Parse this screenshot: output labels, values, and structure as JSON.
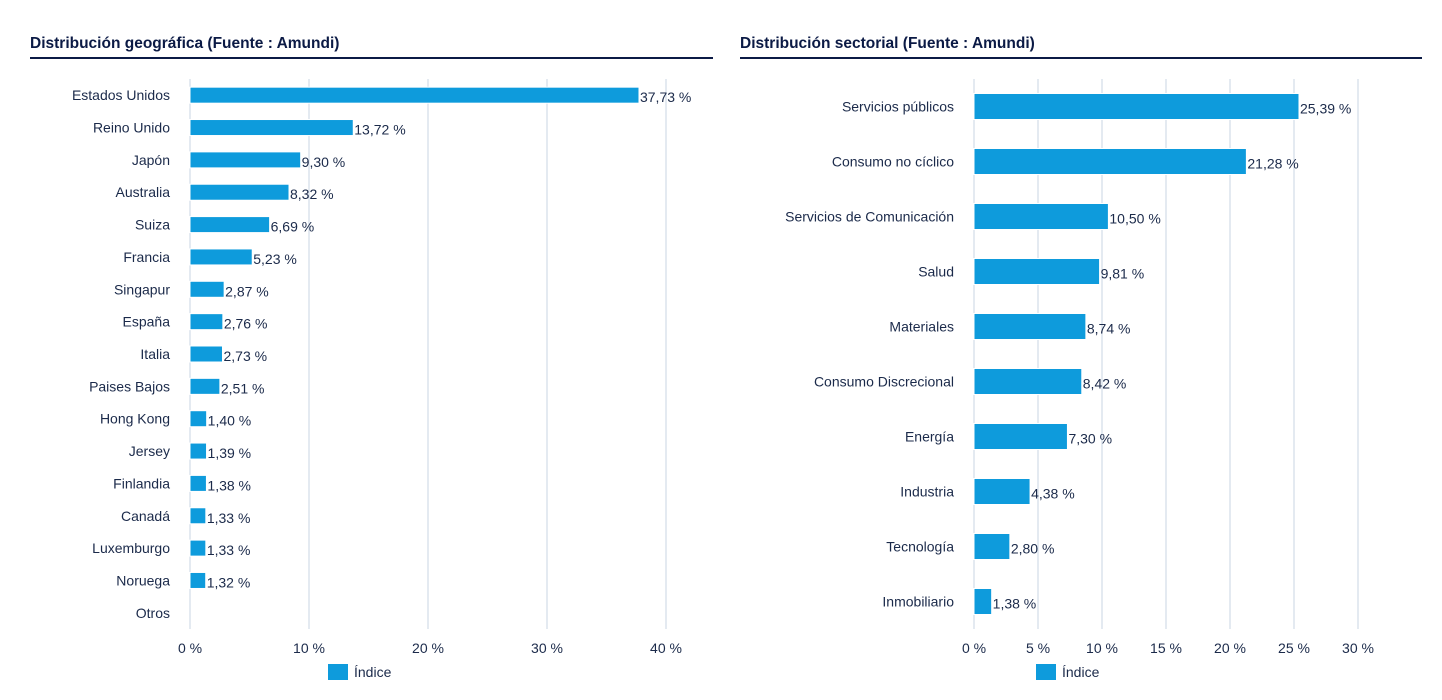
{
  "chart_data": [
    {
      "type": "bar",
      "orientation": "horizontal",
      "title": "Distribución geográfica (Fuente : Amundi)",
      "categories": [
        "Estados Unidos",
        "Reino Unido",
        "Japón",
        "Australia",
        "Suiza",
        "Francia",
        "Singapur",
        "España",
        "Italia",
        "Paises Bajos",
        "Hong Kong",
        "Jersey",
        "Finlandia",
        "Canadá",
        "Luxemburgo",
        "Noruega",
        "Otros"
      ],
      "values": [
        37.73,
        13.72,
        9.3,
        8.32,
        6.69,
        5.23,
        2.87,
        2.76,
        2.73,
        2.51,
        1.4,
        1.39,
        1.38,
        1.33,
        1.33,
        1.32,
        null
      ],
      "value_labels": [
        "37,73 %",
        "13,72 %",
        "9,30 %",
        "8,32 %",
        "6,69 %",
        "5,23 %",
        "2,87 %",
        "2,76 %",
        "2,73 %",
        "2,51 %",
        "1,40 %",
        "1,39 %",
        "1,38 %",
        "1,33 %",
        "1,33 %",
        "1,32 %",
        ""
      ],
      "xlim": [
        0,
        40
      ],
      "xticks": [
        0,
        10,
        20,
        30,
        40
      ],
      "xtick_labels": [
        "0 %",
        "10 %",
        "20 %",
        "30 %",
        "40 %"
      ],
      "grid": true,
      "legend": {
        "position": "bottom",
        "entries": [
          "Índice"
        ]
      },
      "color": "#0e9bdc"
    },
    {
      "type": "bar",
      "orientation": "horizontal",
      "title": "Distribución sectorial (Fuente : Amundi)",
      "categories": [
        "Servicios públicos",
        "Consumo no cíclico",
        "Servicios de Comunicación",
        "Salud",
        "Materiales",
        "Consumo Discrecional",
        "Energía",
        "Industria",
        "Tecnología",
        "Inmobiliario"
      ],
      "values": [
        25.39,
        21.28,
        10.5,
        9.81,
        8.74,
        8.42,
        7.3,
        4.38,
        2.8,
        1.38
      ],
      "value_labels": [
        "25,39 %",
        "21,28 %",
        "10,50 %",
        "9,81 %",
        "8,74 %",
        "8,42 %",
        "7,30 %",
        "4,38 %",
        "2,80 %",
        "1,38 %"
      ],
      "xlim": [
        0,
        30
      ],
      "xticks": [
        0,
        5,
        10,
        15,
        20,
        25,
        30
      ],
      "xtick_labels": [
        "0 %",
        "5 %",
        "10 %",
        "15 %",
        "20 %",
        "25 %",
        "30 %"
      ],
      "grid": true,
      "legend": {
        "position": "bottom",
        "entries": [
          "Índice"
        ]
      },
      "color": "#0e9bdc"
    }
  ]
}
